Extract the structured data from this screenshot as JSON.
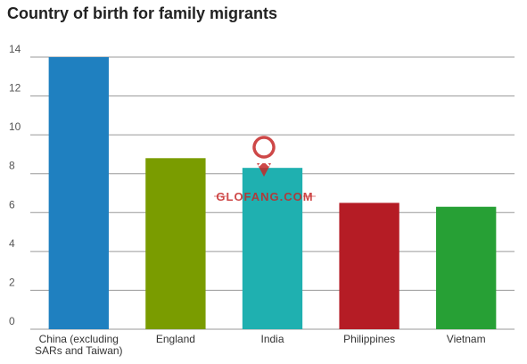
{
  "chart_data": {
    "type": "bar",
    "title": "Country of birth for family migrants",
    "categories": [
      "China (excluding SARs and Taiwan)",
      "England",
      "India",
      "Philippines",
      "Vietnam"
    ],
    "category_lines": [
      [
        "China (excluding",
        "SARs and Taiwan)"
      ],
      [
        "England"
      ],
      [
        "India"
      ],
      [
        "Philippines"
      ],
      [
        "Vietnam"
      ]
    ],
    "values": [
      14.0,
      8.8,
      8.3,
      6.5,
      6.3
    ],
    "colors": [
      "#1f80c0",
      "#7a9c00",
      "#1fb0b0",
      "#b51c25",
      "#27a035"
    ],
    "ylim": [
      0,
      14
    ],
    "yticks": [
      0,
      2,
      4,
      6,
      8,
      10,
      12,
      14
    ],
    "xlabel": "",
    "ylabel": "",
    "grid": true,
    "watermark": "GLOFANG.COM"
  }
}
